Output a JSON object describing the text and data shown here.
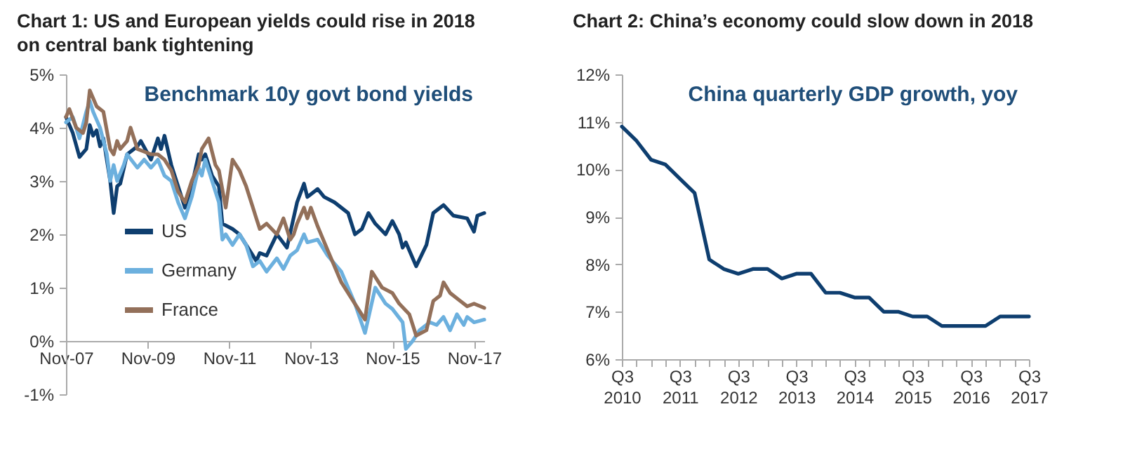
{
  "chart_data": [
    {
      "type": "line",
      "title": "Chart 1: US and European yields could rise in 2018 on central bank tightening",
      "annotations": [
        "Benchmark 10y govt bond yields"
      ],
      "legend": "bottom left",
      "marker": "none",
      "line_style": "solid",
      "grid": false,
      "xlim": [
        "2007-11",
        "2018-02"
      ],
      "xticks": [
        {
          "value": "2007-11",
          "label": "Nov-07"
        },
        {
          "value": "2009-11",
          "label": "Nov-09"
        },
        {
          "value": "2011-11",
          "label": "Nov-11"
        },
        {
          "value": "2013-11",
          "label": "Nov-13"
        },
        {
          "value": "2015-11",
          "label": "Nov-15"
        },
        {
          "value": "2017-11",
          "label": "Nov-17"
        }
      ],
      "ylim": [
        -1,
        5
      ],
      "yticks": [
        {
          "value": -1,
          "label": "-1%"
        },
        {
          "value": 0,
          "label": "0%"
        },
        {
          "value": 1,
          "label": "1%"
        },
        {
          "value": 2,
          "label": "2%"
        },
        {
          "value": 3,
          "label": "3%"
        },
        {
          "value": 4,
          "label": "4%"
        },
        {
          "value": 5,
          "label": "5%"
        }
      ],
      "series": [
        {
          "name": "US",
          "color": "#0e3e6f",
          "x": [
            "2007-11",
            "2008-01",
            "2008-03",
            "2008-05",
            "2008-06",
            "2008-07",
            "2008-08",
            "2008-09",
            "2008-10",
            "2008-12",
            "2009-01",
            "2009-02",
            "2009-03",
            "2009-05",
            "2009-08",
            "2009-09",
            "2009-12",
            "2010-02",
            "2010-03",
            "2010-04",
            "2010-06",
            "2010-08",
            "2010-10",
            "2010-12",
            "2011-02",
            "2011-03",
            "2011-04",
            "2011-06",
            "2011-08",
            "2011-09",
            "2011-12",
            "2012-02",
            "2012-07",
            "2012-08",
            "2012-10",
            "2013-01",
            "2013-04",
            "2013-07",
            "2013-09",
            "2013-10",
            "2014-01",
            "2014-03",
            "2014-06",
            "2014-10",
            "2014-12",
            "2015-02",
            "2015-04",
            "2015-06",
            "2015-09",
            "2015-11",
            "2016-01",
            "2016-02",
            "2016-03",
            "2016-06",
            "2016-09",
            "2016-11",
            "2017-02",
            "2017-05",
            "2017-09",
            "2017-11",
            "2017-12",
            "2018-02"
          ],
          "values": [
            4.2,
            3.9,
            3.45,
            3.6,
            4.05,
            3.85,
            3.95,
            3.65,
            3.8,
            3.0,
            2.4,
            2.9,
            2.95,
            3.5,
            3.65,
            3.75,
            3.4,
            3.8,
            3.6,
            3.85,
            3.3,
            2.9,
            2.5,
            2.9,
            3.5,
            3.4,
            3.5,
            3.1,
            2.9,
            2.2,
            2.1,
            2.0,
            1.5,
            1.65,
            1.6,
            2.0,
            1.75,
            2.6,
            2.95,
            2.7,
            2.85,
            2.7,
            2.6,
            2.4,
            2.0,
            2.1,
            2.4,
            2.2,
            2.0,
            2.25,
            2.0,
            1.75,
            1.85,
            1.4,
            1.8,
            2.4,
            2.55,
            2.35,
            2.3,
            2.05,
            2.35,
            2.4
          ]
        },
        {
          "name": "Germany",
          "color": "#6cb0de",
          "x": [
            "2007-11",
            "2008-01",
            "2008-03",
            "2008-05",
            "2008-06",
            "2008-07",
            "2008-09",
            "2008-11",
            "2008-12",
            "2009-01",
            "2009-02",
            "2009-04",
            "2009-05",
            "2009-08",
            "2009-10",
            "2009-12",
            "2010-02",
            "2010-04",
            "2010-06",
            "2010-08",
            "2010-10",
            "2010-12",
            "2011-02",
            "2011-03",
            "2011-04",
            "2011-06",
            "2011-08",
            "2011-09",
            "2011-10",
            "2011-12",
            "2012-02",
            "2012-04",
            "2012-06",
            "2012-08",
            "2012-10",
            "2013-01",
            "2013-03",
            "2013-05",
            "2013-07",
            "2013-09",
            "2013-10",
            "2014-01",
            "2014-04",
            "2014-08",
            "2014-12",
            "2015-03",
            "2015-06",
            "2015-09",
            "2015-11",
            "2016-02",
            "2016-03",
            "2016-05",
            "2016-07",
            "2016-10",
            "2016-12",
            "2017-02",
            "2017-04",
            "2017-06",
            "2017-08",
            "2017-09",
            "2017-11",
            "2018-02"
          ],
          "values": [
            4.1,
            4.2,
            3.8,
            4.3,
            4.5,
            4.3,
            4.0,
            3.5,
            3.0,
            3.3,
            3.0,
            3.3,
            3.5,
            3.25,
            3.4,
            3.25,
            3.4,
            3.1,
            3.0,
            2.6,
            2.3,
            2.7,
            3.25,
            3.1,
            3.4,
            3.0,
            2.6,
            1.9,
            2.0,
            1.8,
            2.0,
            1.8,
            1.4,
            1.5,
            1.3,
            1.55,
            1.35,
            1.6,
            1.7,
            2.0,
            1.85,
            1.9,
            1.6,
            1.3,
            0.7,
            0.15,
            1.0,
            0.7,
            0.6,
            0.35,
            -0.15,
            0.0,
            0.2,
            0.35,
            0.3,
            0.45,
            0.2,
            0.5,
            0.3,
            0.45,
            0.35,
            0.4
          ]
        },
        {
          "name": "France",
          "color": "#93705a",
          "x": [
            "2007-11",
            "2007-12",
            "2008-02",
            "2008-04",
            "2008-05",
            "2008-06",
            "2008-08",
            "2008-10",
            "2008-12",
            "2009-01",
            "2009-02",
            "2009-03",
            "2009-05",
            "2009-06",
            "2009-08",
            "2009-10",
            "2009-12",
            "2010-02",
            "2010-04",
            "2010-06",
            "2010-08",
            "2010-10",
            "2010-12",
            "2011-02",
            "2011-03",
            "2011-05",
            "2011-07",
            "2011-08",
            "2011-10",
            "2011-12",
            "2012-02",
            "2012-04",
            "2012-06",
            "2012-07",
            "2012-08",
            "2012-10",
            "2013-01",
            "2013-03",
            "2013-05",
            "2013-06",
            "2013-07",
            "2013-09",
            "2013-10",
            "2013-11",
            "2014-01",
            "2014-04",
            "2014-08",
            "2015-03",
            "2015-05",
            "2015-08",
            "2015-11",
            "2016-01",
            "2016-04",
            "2016-06",
            "2016-09",
            "2016-11",
            "2017-01",
            "2017-02",
            "2017-04",
            "2017-07",
            "2017-09",
            "2017-11",
            "2018-02"
          ],
          "values": [
            4.2,
            4.35,
            4.0,
            3.9,
            4.1,
            4.7,
            4.4,
            4.3,
            3.6,
            3.5,
            3.75,
            3.6,
            3.75,
            4.0,
            3.6,
            3.55,
            3.5,
            3.5,
            3.4,
            3.2,
            2.8,
            2.6,
            3.0,
            3.3,
            3.6,
            3.8,
            3.3,
            3.2,
            2.5,
            3.4,
            3.2,
            2.9,
            2.5,
            2.3,
            2.1,
            2.2,
            2.0,
            2.3,
            1.9,
            2.0,
            2.2,
            2.5,
            2.3,
            2.5,
            2.15,
            1.7,
            1.1,
            0.4,
            1.3,
            1.0,
            0.9,
            0.7,
            0.5,
            0.1,
            0.2,
            0.75,
            0.85,
            1.1,
            0.9,
            0.75,
            0.65,
            0.7,
            0.62
          ]
        }
      ]
    },
    {
      "type": "line",
      "title": "Chart 2: China’s economy could slow down in 2018",
      "annotations": [
        "China quarterly GDP growth, yoy"
      ],
      "marker": "none",
      "line_style": "solid",
      "grid": false,
      "x": [
        "2010-07",
        "2010-10",
        "2011-01",
        "2011-04",
        "2011-07",
        "2011-10",
        "2012-01",
        "2012-04",
        "2012-07",
        "2012-10",
        "2013-01",
        "2013-04",
        "2013-07",
        "2013-10",
        "2014-01",
        "2014-04",
        "2014-07",
        "2014-10",
        "2015-01",
        "2015-04",
        "2015-07",
        "2015-10",
        "2016-01",
        "2016-04",
        "2016-07",
        "2016-10",
        "2017-01",
        "2017-04",
        "2017-07"
      ],
      "xlim": [
        "2010-07",
        "2017-07"
      ],
      "xticks": [
        {
          "value": "2010-07",
          "label": "Q3 2010"
        },
        {
          "value": "2010-10",
          "label": null
        },
        {
          "value": "2011-01",
          "label": null
        },
        {
          "value": "2011-04",
          "label": null
        },
        {
          "value": "2011-07",
          "label": "Q3 2011"
        },
        {
          "value": "2011-10",
          "label": null
        },
        {
          "value": "2012-01",
          "label": null
        },
        {
          "value": "2012-04",
          "label": null
        },
        {
          "value": "2012-07",
          "label": "Q3 2012"
        },
        {
          "value": "2012-10",
          "label": null
        },
        {
          "value": "2013-01",
          "label": null
        },
        {
          "value": "2013-04",
          "label": null
        },
        {
          "value": "2013-07",
          "label": "Q3 2013"
        },
        {
          "value": "2013-10",
          "label": null
        },
        {
          "value": "2014-01",
          "label": null
        },
        {
          "value": "2014-04",
          "label": null
        },
        {
          "value": "2014-07",
          "label": "Q3 2014"
        },
        {
          "value": "2014-10",
          "label": null
        },
        {
          "value": "2015-01",
          "label": null
        },
        {
          "value": "2015-04",
          "label": null
        },
        {
          "value": "2015-07",
          "label": "Q3 2015"
        },
        {
          "value": "2015-10",
          "label": null
        },
        {
          "value": "2016-01",
          "label": null
        },
        {
          "value": "2016-04",
          "label": null
        },
        {
          "value": "2016-07",
          "label": "Q3 2016"
        },
        {
          "value": "2016-10",
          "label": null
        },
        {
          "value": "2017-01",
          "label": null
        },
        {
          "value": "2017-04",
          "label": null
        },
        {
          "value": "2017-07",
          "label": "Q3 2017"
        }
      ],
      "ylim": [
        6,
        12
      ],
      "yticks": [
        {
          "value": 6,
          "label": "6%"
        },
        {
          "value": 7,
          "label": "7%"
        },
        {
          "value": 8,
          "label": "8%"
        },
        {
          "value": 9,
          "label": "9%"
        },
        {
          "value": 10,
          "label": "10%"
        },
        {
          "value": 11,
          "label": "11%"
        },
        {
          "value": 12,
          "label": "12%"
        }
      ],
      "series": [
        {
          "color": "#0e3e6f",
          "values": [
            10.9,
            10.6,
            10.2,
            10.1,
            9.8,
            9.5,
            8.1,
            7.9,
            7.8,
            7.9,
            7.9,
            7.7,
            7.8,
            7.8,
            7.4,
            7.4,
            7.3,
            7.3,
            7.0,
            7.0,
            6.9,
            6.9,
            6.7,
            6.7,
            6.7,
            6.7,
            6.9,
            6.9,
            6.9
          ]
        }
      ]
    }
  ]
}
